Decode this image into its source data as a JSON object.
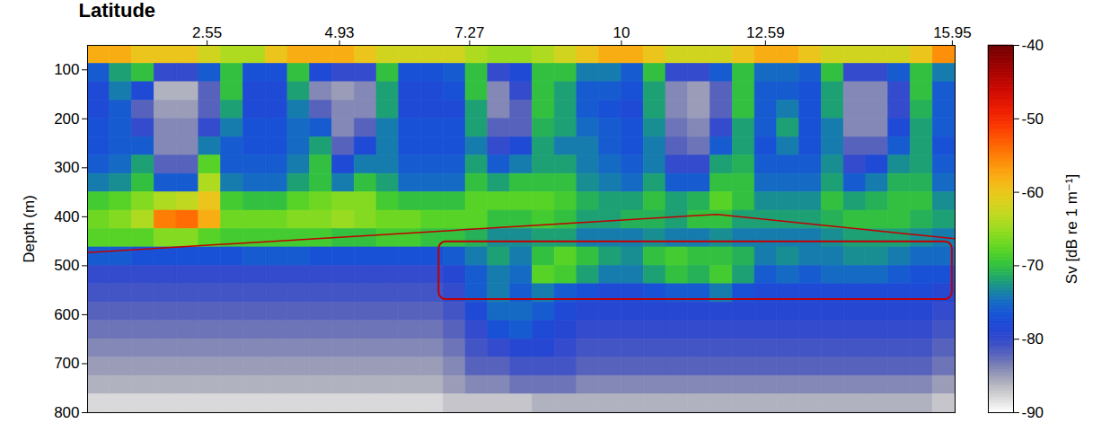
{
  "chart_data": {
    "type": "heatmap",
    "x_label": "Latitude",
    "y_label": "Depth (m)",
    "xlim": [
      0.4,
      16
    ],
    "xticks": [
      2.55,
      4.93,
      7.27,
      10,
      12.59,
      15.95
    ],
    "ylim": [
      800,
      50
    ],
    "yticks": [
      100,
      200,
      300,
      400,
      500,
      600,
      700,
      800
    ],
    "grid": false,
    "x_edges": [
      0.4,
      0.8,
      1.2,
      1.6,
      2,
      2.4,
      2.8,
      3.2,
      3.6,
      4,
      4.4,
      4.8,
      5.2,
      5.6,
      6,
      6.4,
      6.8,
      7.2,
      7.6,
      8,
      8.4,
      8.8,
      9.2,
      9.6,
      10,
      10.4,
      10.8,
      11.2,
      11.6,
      12,
      12.4,
      12.8,
      13.2,
      13.6,
      14,
      14.4,
      14.8,
      15.2,
      15.6,
      16
    ],
    "y_edges": [
      50,
      87.5,
      125,
      162.5,
      200,
      237.5,
      275,
      312.5,
      350,
      387.5,
      425,
      462.5,
      500,
      537.5,
      575,
      612.5,
      650,
      687.5,
      725,
      762.5,
      800
    ],
    "cells": [
      [
        -58,
        -76,
        -78,
        -78,
        -77,
        -77,
        -76,
        -74,
        -69,
        -67,
        -68,
        -76,
        -80,
        -81,
        -82,
        -83,
        -84,
        -85,
        -86,
        -88
      ],
      [
        -58,
        -72,
        -74,
        -76,
        -76,
        -76,
        -75,
        -73,
        -68,
        -66,
        -68,
        -76,
        -80,
        -81,
        -82,
        -83,
        -84,
        -85,
        -86,
        -88
      ],
      [
        -60,
        -70,
        -78,
        -82,
        -80,
        -76,
        -72,
        -70,
        -66,
        -64,
        -68,
        -77,
        -80,
        -81,
        -82,
        -83,
        -84,
        -85,
        -86,
        -88
      ],
      [
        -60,
        -80,
        -86,
        -85,
        -84,
        -84,
        -82,
        -76,
        -64,
        -55,
        -66,
        -77,
        -80,
        -81,
        -82,
        -83,
        -84,
        -85,
        -86,
        -88
      ],
      [
        -60,
        -80,
        -86,
        -85,
        -84,
        -84,
        -82,
        -76,
        -63,
        -54,
        -66,
        -77,
        -80,
        -81,
        -82,
        -83,
        -84,
        -85,
        -86,
        -88
      ],
      [
        -62,
        -76,
        -82,
        -82,
        -80,
        -74,
        -68,
        -64,
        -60,
        -58,
        -68,
        -77,
        -80,
        -81,
        -82,
        -83,
        -84,
        -85,
        -86,
        -88
      ],
      [
        -64,
        -70,
        -70,
        -72,
        -74,
        -76,
        -76,
        -74,
        -69,
        -67,
        -69,
        -77,
        -80,
        -81,
        -82,
        -83,
        -84,
        -85,
        -86,
        -88
      ],
      [
        -64,
        -77,
        -78,
        -78,
        -77,
        -77,
        -76,
        -75,
        -70,
        -67,
        -69,
        -76,
        -80,
        -81,
        -82,
        -83,
        -84,
        -85,
        -86,
        -88
      ],
      [
        -60,
        -77,
        -78,
        -78,
        -77,
        -77,
        -76,
        -75,
        -70,
        -67,
        -69,
        -76,
        -80,
        -81,
        -82,
        -83,
        -84,
        -85,
        -86,
        -88
      ],
      [
        -58,
        -70,
        -72,
        -74,
        -75,
        -75,
        -74,
        -72,
        -68,
        -66,
        -69,
        -76,
        -80,
        -81,
        -82,
        -83,
        -84,
        -85,
        -86,
        -88
      ],
      [
        -58,
        -78,
        -84,
        -82,
        -76,
        -72,
        -70,
        -70,
        -67,
        -66,
        -69,
        -77,
        -80,
        -81,
        -82,
        -83,
        -84,
        -85,
        -86,
        -88
      ],
      [
        -58,
        -80,
        -85,
        -84,
        -84,
        -82,
        -78,
        -74,
        -66,
        -65,
        -70,
        -77,
        -80,
        -81,
        -82,
        -83,
        -84,
        -85,
        -86,
        -88
      ],
      [
        -60,
        -80,
        -84,
        -84,
        -82,
        -78,
        -74,
        -70,
        -66,
        -66,
        -70,
        -77,
        -80,
        -81,
        -82,
        -83,
        -84,
        -85,
        -86,
        -88
      ],
      [
        -62,
        -70,
        -72,
        -72,
        -74,
        -74,
        -74,
        -72,
        -69,
        -67,
        -69,
        -77,
        -80,
        -81,
        -82,
        -83,
        -84,
        -85,
        -86,
        -88
      ],
      [
        -62,
        -77,
        -78,
        -78,
        -77,
        -77,
        -76,
        -75,
        -70,
        -67,
        -69,
        -77,
        -80,
        -81,
        -82,
        -83,
        -84,
        -85,
        -86,
        -88
      ],
      [
        -62,
        -77,
        -78,
        -78,
        -77,
        -77,
        -76,
        -75,
        -70,
        -68,
        -70,
        -77,
        -80,
        -81,
        -82,
        -83,
        -84,
        -85,
        -86,
        -88
      ],
      [
        -62,
        -76,
        -77,
        -78,
        -77,
        -77,
        -76,
        -75,
        -70,
        -68,
        -70,
        -76,
        -79,
        -80,
        -81,
        -82,
        -83,
        -84,
        -85,
        -87
      ],
      [
        -64,
        -70,
        -70,
        -72,
        -72,
        -74,
        -72,
        -70,
        -68,
        -68,
        -71,
        -74,
        -76,
        -76,
        -78,
        -80,
        -81,
        -82,
        -84,
        -87
      ],
      [
        -65,
        -80,
        -84,
        -84,
        -82,
        -80,
        -76,
        -72,
        -68,
        -70,
        -73,
        -72,
        -74,
        -74,
        -75,
        -77,
        -80,
        -82,
        -84,
        -87
      ],
      [
        -65,
        -78,
        -80,
        -82,
        -82,
        -78,
        -74,
        -70,
        -68,
        -70,
        -73,
        -74,
        -75,
        -76,
        -75,
        -76,
        -79,
        -81,
        -83,
        -87
      ],
      [
        -64,
        -70,
        -70,
        -70,
        -71,
        -72,
        -72,
        -70,
        -68,
        -69,
        -72,
        -70,
        -68,
        -74,
        -76,
        -78,
        -79,
        -81,
        -83,
        -86
      ],
      [
        -62,
        -70,
        -72,
        -72,
        -72,
        -74,
        -72,
        -70,
        -69,
        -70,
        -72,
        -68,
        -69,
        -76,
        -78,
        -79,
        -80,
        -81,
        -83,
        -86
      ],
      [
        -60,
        -74,
        -76,
        -76,
        -75,
        -74,
        -74,
        -73,
        -71,
        -72,
        -74,
        -70,
        -72,
        -77,
        -79,
        -80,
        -81,
        -82,
        -84,
        -86
      ],
      [
        -58,
        -74,
        -76,
        -77,
        -76,
        -76,
        -75,
        -74,
        -72,
        -72,
        -74,
        -72,
        -74,
        -78,
        -79,
        -80,
        -81,
        -82,
        -84,
        -86
      ],
      [
        -58,
        -76,
        -77,
        -78,
        -77,
        -77,
        -76,
        -75,
        -72,
        -71,
        -74,
        -73,
        -74,
        -78,
        -79,
        -80,
        -81,
        -82,
        -84,
        -86
      ],
      [
        -60,
        -70,
        -72,
        -72,
        -73,
        -74,
        -74,
        -72,
        -70,
        -71,
        -73,
        -70,
        -72,
        -77,
        -79,
        -80,
        -81,
        -82,
        -84,
        -86
      ],
      [
        -62,
        -80,
        -84,
        -84,
        -83,
        -82,
        -80,
        -76,
        -72,
        -72,
        -74,
        -69,
        -70,
        -76,
        -79,
        -80,
        -81,
        -82,
        -84,
        -86
      ],
      [
        -62,
        -80,
        -85,
        -85,
        -84,
        -83,
        -80,
        -76,
        -71,
        -70,
        -74,
        -70,
        -71,
        -76,
        -79,
        -80,
        -81,
        -82,
        -84,
        -86
      ],
      [
        -62,
        -76,
        -82,
        -82,
        -80,
        -76,
        -72,
        -70,
        -68,
        -70,
        -73,
        -70,
        -69,
        -74,
        -79,
        -80,
        -81,
        -82,
        -84,
        -86
      ],
      [
        -60,
        -70,
        -70,
        -70,
        -72,
        -72,
        -71,
        -70,
        -70,
        -72,
        -74,
        -71,
        -72,
        -77,
        -79,
        -80,
        -81,
        -82,
        -84,
        -86
      ],
      [
        -58,
        -75,
        -76,
        -76,
        -76,
        -77,
        -76,
        -75,
        -73,
        -72,
        -74,
        -74,
        -76,
        -78,
        -79,
        -80,
        -81,
        -82,
        -84,
        -86
      ],
      [
        -58,
        -75,
        -76,
        -74,
        -72,
        -74,
        -76,
        -75,
        -73,
        -72,
        -74,
        -73,
        -75,
        -78,
        -79,
        -80,
        -81,
        -82,
        -84,
        -86
      ],
      [
        -60,
        -76,
        -77,
        -77,
        -77,
        -77,
        -76,
        -75,
        -73,
        -72,
        -74,
        -74,
        -76,
        -78,
        -79,
        -80,
        -81,
        -82,
        -84,
        -86
      ],
      [
        -62,
        -70,
        -72,
        -72,
        -74,
        -74,
        -73,
        -72,
        -70,
        -71,
        -73,
        -74,
        -75,
        -78,
        -79,
        -80,
        -81,
        -82,
        -84,
        -86
      ],
      [
        -62,
        -80,
        -84,
        -84,
        -84,
        -82,
        -80,
        -76,
        -72,
        -70,
        -72,
        -73,
        -75,
        -78,
        -79,
        -80,
        -81,
        -82,
        -84,
        -86
      ],
      [
        -62,
        -80,
        -84,
        -84,
        -84,
        -82,
        -78,
        -74,
        -71,
        -70,
        -72,
        -73,
        -75,
        -78,
        -79,
        -80,
        -81,
        -82,
        -84,
        -86
      ],
      [
        -62,
        -76,
        -80,
        -80,
        -78,
        -76,
        -73,
        -71,
        -70,
        -70,
        -72,
        -74,
        -76,
        -78,
        -79,
        -80,
        -81,
        -82,
        -84,
        -86
      ],
      [
        -60,
        -70,
        -70,
        -71,
        -72,
        -72,
        -72,
        -71,
        -70,
        -71,
        -73,
        -75,
        -77,
        -78,
        -79,
        -80,
        -81,
        -82,
        -84,
        -86
      ],
      [
        -56,
        -74,
        -76,
        -76,
        -76,
        -77,
        -76,
        -75,
        -73,
        -72,
        -74,
        -75,
        -77,
        -79,
        -80,
        -81,
        -82,
        -83,
        -85,
        -87
      ]
    ],
    "colorbar": {
      "label": "Sv [dB re 1 m⁻¹]",
      "range": [
        -90,
        -40
      ],
      "ticks": [
        -40,
        -50,
        -60,
        -70,
        -80,
        -90
      ]
    },
    "annotations": {
      "line": {
        "x": [
          0.4,
          11.72,
          16
        ],
        "y": [
          473,
          395,
          445
        ],
        "color": "#c00000"
      },
      "box": {
        "x": [
          6.72,
          15.95
        ],
        "y": [
          451,
          569
        ],
        "color": "#c00000"
      }
    }
  }
}
